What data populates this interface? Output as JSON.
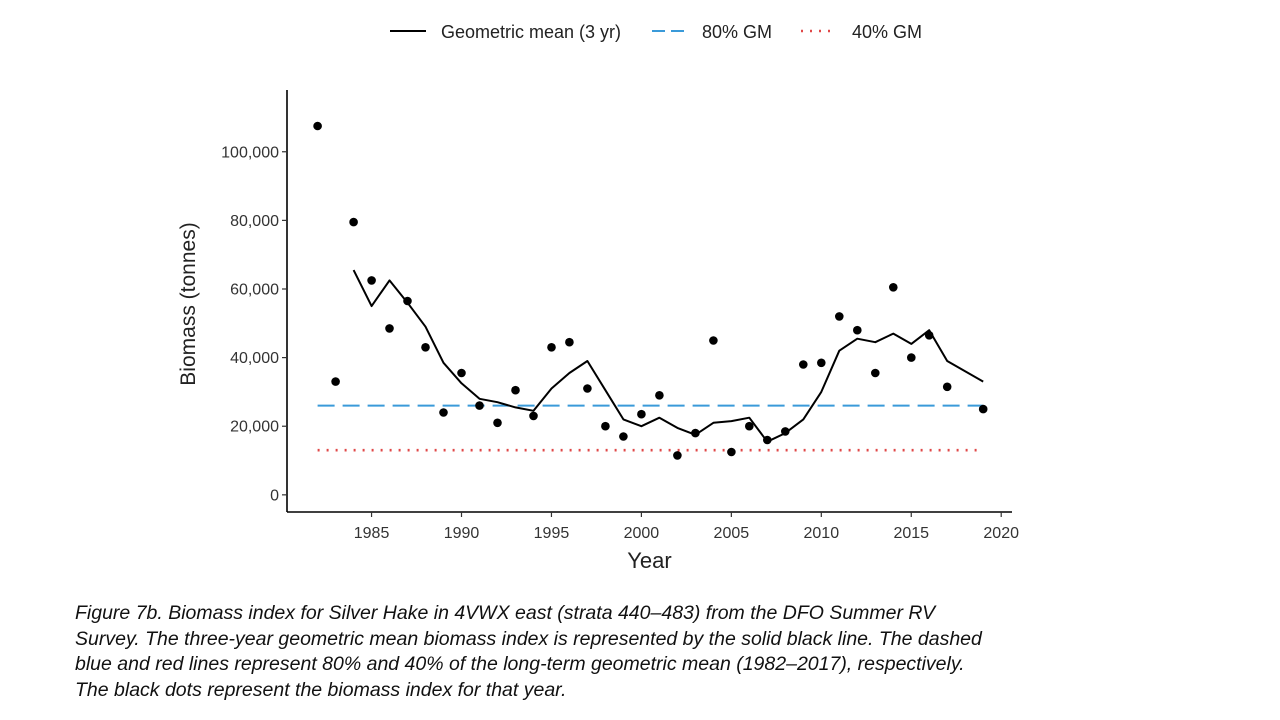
{
  "chart_data": {
    "type": "scatter",
    "xlabel": "Year",
    "ylabel": "Biomass (tonnes)",
    "xlim": [
      1980.3,
      2020.6
    ],
    "ylim": [
      -5000,
      118000
    ],
    "xticks": [
      1985,
      1990,
      1995,
      2000,
      2005,
      2010,
      2015,
      2020
    ],
    "xtick_labels": [
      "1985",
      "1990",
      "1995",
      "2000",
      "2005",
      "2010",
      "2015",
      "2020"
    ],
    "yticks": [
      0,
      20000,
      40000,
      60000,
      80000,
      100000
    ],
    "ytick_labels": [
      "0",
      "20,000",
      "40,000",
      "60,000",
      "80,000",
      "100,000"
    ],
    "grid": false,
    "legend_position": "top",
    "legend": [
      {
        "label": "Geometric mean (3 yr)",
        "style": "solid",
        "color": "#000000"
      },
      {
        "label": "80% GM",
        "style": "dashed",
        "color": "#3a9ad9"
      },
      {
        "label": "40% GM",
        "style": "dotted",
        "color": "#e04848"
      }
    ],
    "points": {
      "x": [
        1982,
        1983,
        1984,
        1985,
        1986,
        1987,
        1988,
        1989,
        1990,
        1991,
        1992,
        1993,
        1994,
        1995,
        1996,
        1997,
        1998,
        1999,
        2000,
        2001,
        2002,
        2003,
        2004,
        2005,
        2006,
        2007,
        2008,
        2009,
        2010,
        2011,
        2012,
        2013,
        2014,
        2015,
        2016,
        2017,
        2019
      ],
      "y": [
        107500,
        33000,
        79500,
        62500,
        48500,
        56500,
        43000,
        24000,
        35500,
        26000,
        21000,
        30500,
        23000,
        43000,
        44500,
        31000,
        20000,
        17000,
        23500,
        29000,
        11500,
        18000,
        45000,
        12500,
        20000,
        16000,
        18500,
        38000,
        38500,
        52000,
        48000,
        35500,
        60500,
        40000,
        46500,
        31500,
        25000
      ],
      "color": "#000000"
    },
    "series": [
      {
        "name": "Geometric mean (3 yr)",
        "x": [
          1984,
          1985,
          1986,
          1987,
          1988,
          1989,
          1990,
          1991,
          1992,
          1993,
          1994,
          1995,
          1996,
          1997,
          1998,
          1999,
          2000,
          2001,
          2002,
          2003,
          2004,
          2005,
          2006,
          2007,
          2008,
          2009,
          2010,
          2011,
          2012,
          2013,
          2014,
          2015,
          2016,
          2017,
          2019
        ],
        "y": [
          65500,
          55000,
          62500,
          56000,
          49000,
          38500,
          32500,
          28000,
          27000,
          25500,
          24500,
          31000,
          35500,
          39000,
          30500,
          22000,
          20000,
          22500,
          19500,
          17500,
          21000,
          21500,
          22500,
          15500,
          18000,
          22000,
          30000,
          42000,
          45500,
          44500,
          47000,
          44000,
          48000,
          39000,
          33000
        ],
        "style": "solid",
        "color": "#000000"
      },
      {
        "name": "80% GM",
        "x": [
          1982,
          2019
        ],
        "y": [
          26000,
          26000
        ],
        "style": "dashed",
        "color": "#3a9ad9"
      },
      {
        "name": "40% GM",
        "x": [
          1982,
          2019
        ],
        "y": [
          13000,
          13000
        ],
        "style": "dotted",
        "color": "#e04848"
      }
    ]
  },
  "caption": [
    "Figure 7b. Biomass index for Silver Hake in 4VWX east (strata 440–483) from the DFO Summer RV",
    "Survey. The three-year geometric mean biomass index is represented by the solid black line. The dashed",
    "blue and red lines represent 80% and 40% of the long-term geometric mean (1982–2017), respectively.",
    "The black dots represent the biomass index for that year."
  ]
}
